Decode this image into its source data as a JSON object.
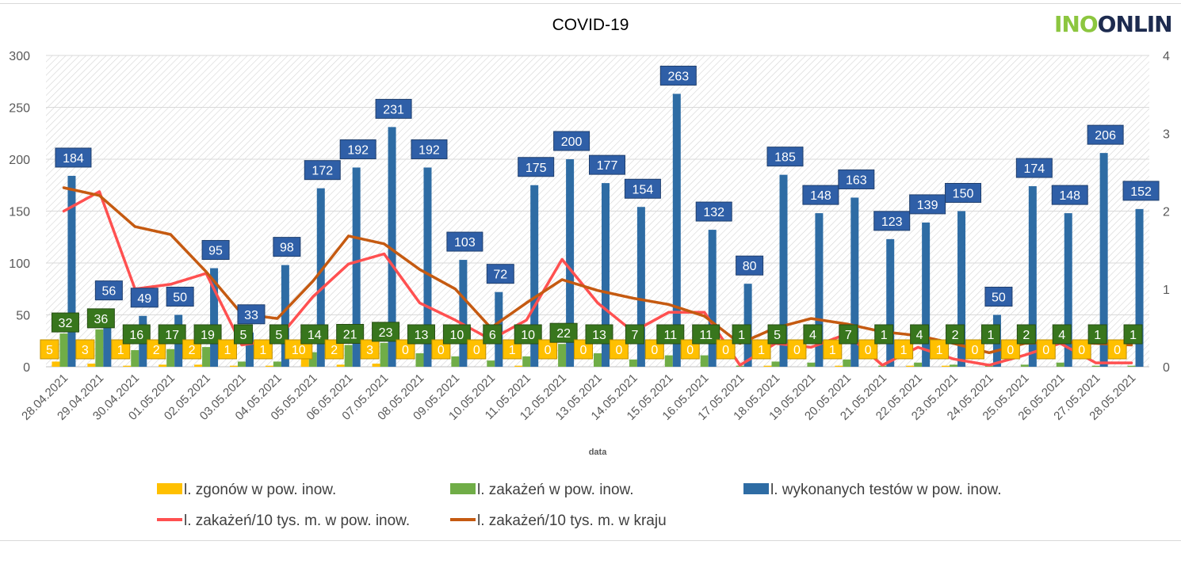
{
  "logo": {
    "part1": "INO",
    "part2": "ONLIN"
  },
  "chart_data": {
    "type": "bar",
    "title": "COVID-19",
    "xlabel": "data",
    "ylabel": "",
    "ylim": [
      0,
      300
    ],
    "y2lim": [
      0,
      4
    ],
    "yticks": [
      "0",
      "50",
      "100",
      "150",
      "200",
      "250",
      "300"
    ],
    "y2ticks": [
      "0",
      "1",
      "2",
      "3",
      "4"
    ],
    "categories": [
      "28.04.2021",
      "29.04.2021",
      "30.04.2021",
      "01.05.2021",
      "02.05.2021",
      "03.05.2021",
      "04.05.2021",
      "05.05.2021",
      "06.05.2021",
      "07.05.2021",
      "08.05.2021",
      "09.05.2021",
      "10.05.2021",
      "11.05.2021",
      "12.05.2021",
      "13.05.2021",
      "14.05.2021",
      "15.05.2021",
      "16.05.2021",
      "17.05.2021",
      "18.05.2021",
      "19.05.2021",
      "20.05.2021",
      "21.05.2021",
      "22.05.2021",
      "23.05.2021",
      "24.05.2021",
      "25.05.2021",
      "26.05.2021",
      "27.05.2021",
      "28.05.2021"
    ],
    "series": [
      {
        "name": "l. zgonów w pow. inow.",
        "type": "bar",
        "axis": "left",
        "color": "#ffc000",
        "values": [
          5,
          3,
          1,
          2,
          2,
          1,
          1,
          10,
          2,
          3,
          0,
          0,
          0,
          1,
          0,
          0,
          0,
          0,
          0,
          0,
          1,
          0,
          1,
          0,
          1,
          1,
          0,
          0,
          0,
          0,
          0
        ]
      },
      {
        "name": "l. zakażeń w pow. inow.",
        "type": "bar",
        "axis": "left",
        "color": "#70ad47",
        "values": [
          32,
          36,
          16,
          17,
          19,
          5,
          5,
          14,
          21,
          23,
          13,
          10,
          6,
          10,
          22,
          13,
          7,
          11,
          11,
          1,
          5,
          4,
          7,
          1,
          4,
          2,
          1,
          2,
          4,
          1,
          1
        ]
      },
      {
        "name": "l. wykonanych testów w pow. inow.",
        "type": "bar",
        "axis": "left",
        "color": "#2e6ca4",
        "values": [
          184,
          56,
          49,
          50,
          95,
          33,
          98,
          172,
          192,
          231,
          192,
          103,
          72,
          175,
          200,
          177,
          154,
          263,
          132,
          80,
          185,
          148,
          163,
          123,
          139,
          150,
          50,
          174,
          148,
          206,
          152
        ]
      },
      {
        "name": "l. zakażeń/10 tys. m. w pow. inow.",
        "type": "line",
        "axis": "right",
        "color": "#ff5050",
        "values": [
          2.0,
          2.25,
          1.0,
          1.06,
          1.2,
          0.28,
          0.35,
          0.9,
          1.32,
          1.45,
          0.82,
          0.6,
          0.35,
          0.6,
          1.38,
          0.82,
          0.45,
          0.7,
          0.7,
          0.02,
          0.3,
          0.25,
          0.42,
          0.02,
          0.25,
          0.1,
          0.02,
          0.15,
          0.3,
          0.05,
          0.05
        ]
      },
      {
        "name": "l. zakażeń/10 tys. m. w kraju",
        "type": "line",
        "axis": "right",
        "color": "#c55a11",
        "values": [
          2.3,
          2.2,
          1.8,
          1.7,
          1.22,
          0.68,
          0.62,
          1.1,
          1.68,
          1.58,
          1.25,
          1.0,
          0.5,
          0.82,
          1.12,
          0.98,
          0.88,
          0.8,
          0.65,
          0.3,
          0.5,
          0.62,
          0.55,
          0.45,
          0.4,
          0.3,
          0.18,
          0.3,
          0.32,
          0.3,
          0.28
        ]
      }
    ],
    "legend_position": "bottom"
  }
}
